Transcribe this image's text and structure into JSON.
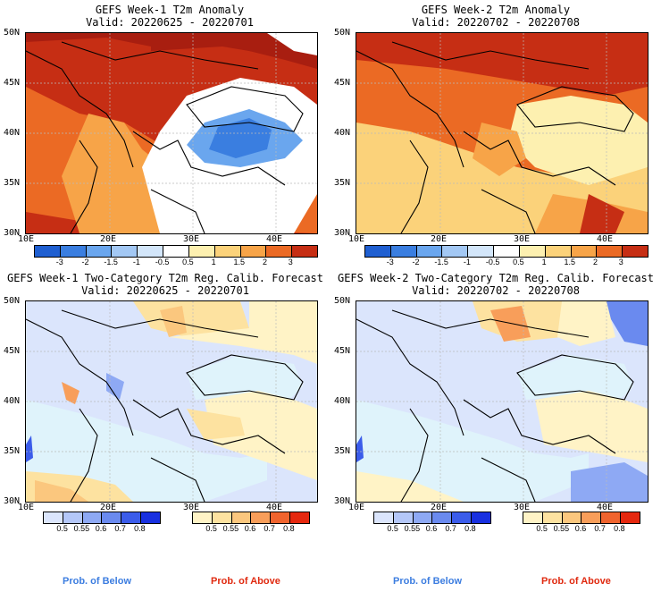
{
  "panels": [
    {
      "title": "GEFS Week-1 T2m Anomaly",
      "valid": "Valid: 20220625 - 20220701"
    },
    {
      "title": "GEFS Week-2 T2m Anomaly",
      "valid": "Valid: 20220702 - 20220708"
    },
    {
      "title": "GEFS Week-1 Two-Category T2m Reg. Calib. Forecast",
      "valid": "Valid: 20220625 - 20220701"
    },
    {
      "title": "GEFS Week-2 Two-Category T2m Reg. Calib. Forecast",
      "valid": "Valid: 20220702 - 20220708"
    }
  ],
  "axes": {
    "lat_labels": [
      "50N",
      "45N",
      "40N",
      "35N",
      "30N"
    ],
    "lon_labels": [
      "10E",
      "20E",
      "30E",
      "40E"
    ]
  },
  "anomaly_colorbar": {
    "labels": [
      "-3",
      "-2",
      "-1.5",
      "-1",
      "-0.5",
      "0.5",
      "1",
      "1.5",
      "2",
      "3"
    ],
    "colors": [
      "#1f5fd1",
      "#3a7ee0",
      "#6aa6ee",
      "#a3c8f4",
      "#d3e6fa",
      "#ffffff",
      "#fdf0b0",
      "#fbd27a",
      "#f7a448",
      "#eb6a24",
      "#c62e14"
    ]
  },
  "prob_below_colorbar": {
    "labels": [
      "0.5",
      "0.55",
      "0.6",
      "0.7",
      "0.8"
    ],
    "colors": [
      "#dbe5fc",
      "#b4c7f8",
      "#8ea9f4",
      "#6a8aef",
      "#3b5cea",
      "#1830e0"
    ]
  },
  "prob_above_colorbar": {
    "labels": [
      "0.5",
      "0.55",
      "0.6",
      "0.7",
      "0.8"
    ],
    "colors": [
      "#fff3c6",
      "#fde2a0",
      "#fbc77e",
      "#f89e5a",
      "#f0642e",
      "#e5280f"
    ]
  },
  "footer": {
    "below": "Prob. of Below",
    "above": "Prob. of Above",
    "below_color": "#3c7de0",
    "above_color": "#e02a10"
  }
}
